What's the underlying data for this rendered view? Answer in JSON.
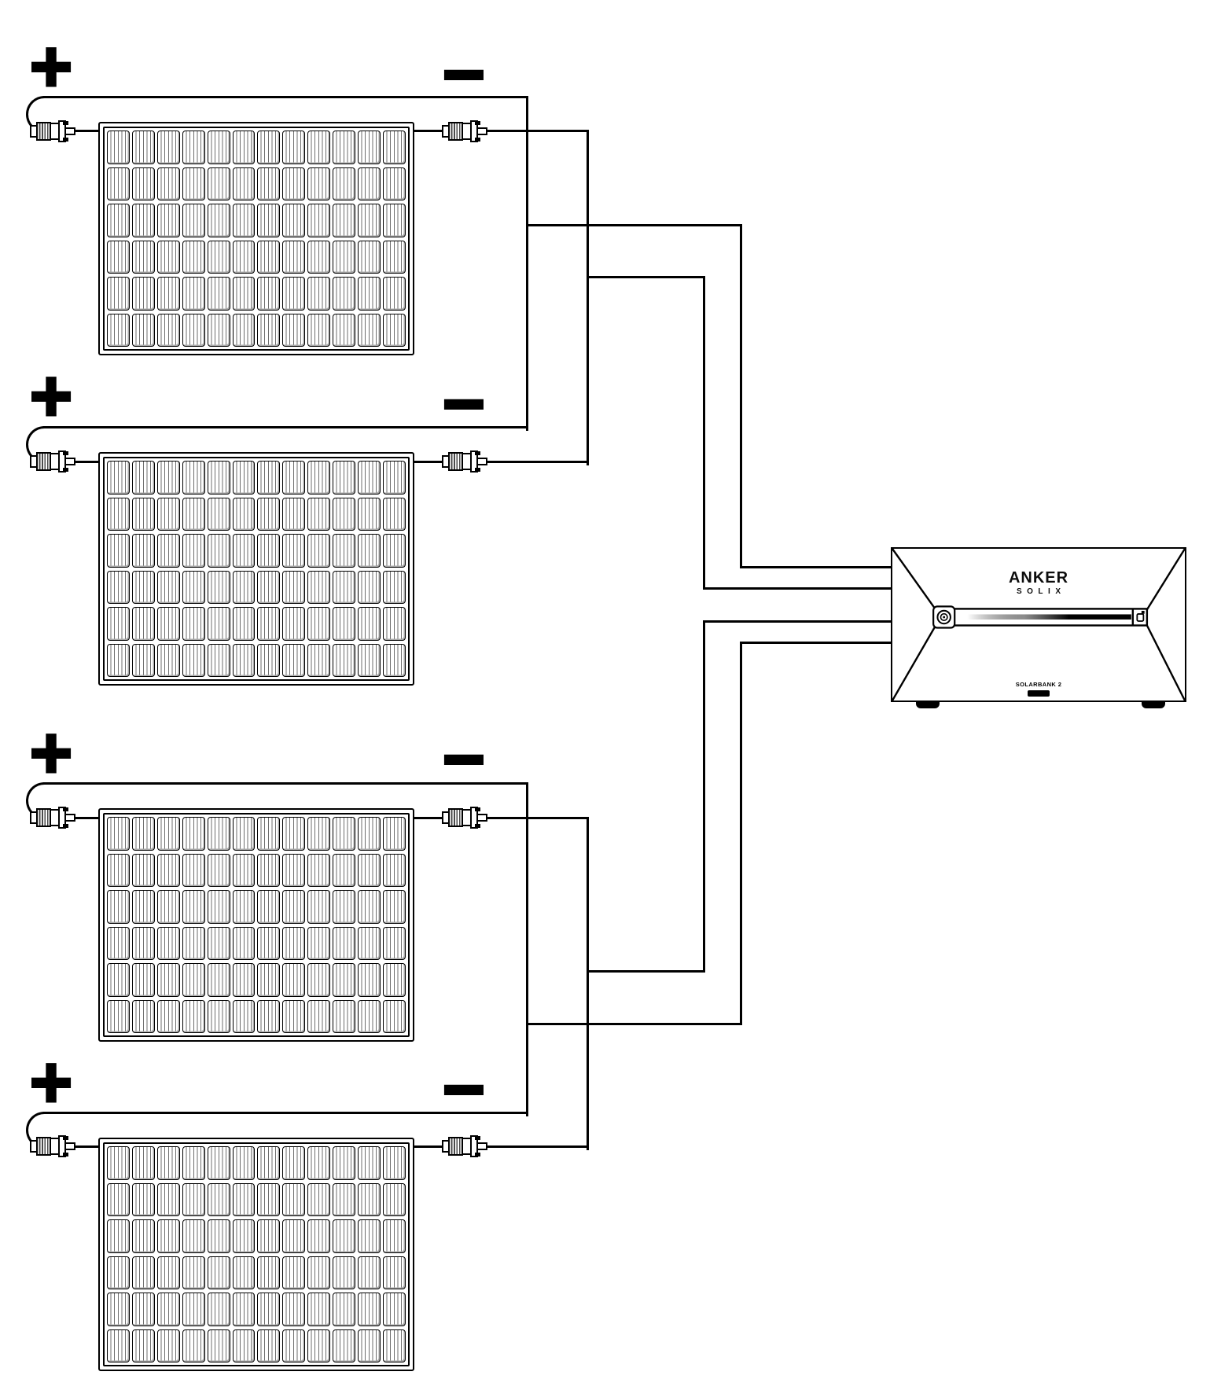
{
  "panels": [
    {
      "name": "solar-panel-1",
      "plus": "+",
      "minus": "−"
    },
    {
      "name": "solar-panel-2",
      "plus": "+",
      "minus": "−"
    },
    {
      "name": "solar-panel-3",
      "plus": "+",
      "minus": "−"
    },
    {
      "name": "solar-panel-4",
      "plus": "+",
      "minus": "−"
    }
  ],
  "device": {
    "brand": "ANKER",
    "series": "SOLIX",
    "model": "SOLARBANK 2"
  },
  "wiring": {
    "pair_1": "Panels 1 and 2: plus terminals joined on one bus, minus terminals joined on another; each bus tapped and routed to the left side of the Solarbank",
    "pair_2": "Panels 3 and 4: plus terminals joined on one bus, minus terminals joined on another; each bus tapped and routed to the left side of the Solarbank"
  },
  "colors": {
    "line": "#000000",
    "background": "#ffffff"
  }
}
